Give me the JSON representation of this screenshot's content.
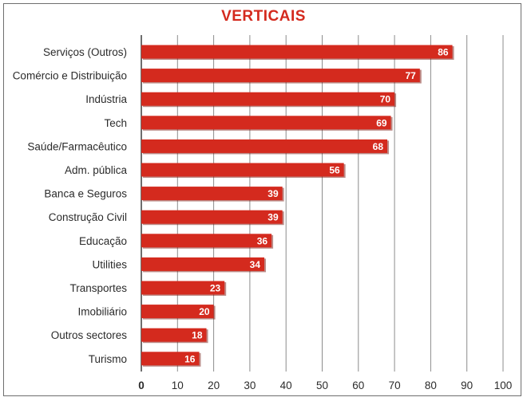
{
  "colors": {
    "bar": "#d42a1e",
    "bar_shadow": "#7a1a12",
    "grid": "#8c8c8c",
    "axis": "#6e6e6e",
    "title": "#d42a1e"
  },
  "chart_data": {
    "type": "bar",
    "orientation": "horizontal",
    "title": "VERTICAIS",
    "xlabel": "",
    "ylabel": "",
    "xlim": [
      0,
      100
    ],
    "grid": true,
    "x_ticks": [
      "0",
      "10",
      "20",
      "30",
      "40",
      "50",
      "60",
      "70",
      "80",
      "90",
      "100"
    ],
    "categories": [
      "Serviços (Outros)",
      "Comércio e Distribuição",
      "Indústria",
      "Tech",
      "Saúde/Farmacêutico",
      "Adm. pública",
      "Banca e Seguros",
      "Construção Civil",
      "Educação",
      "Utilities",
      "Transportes",
      "Imobiliário",
      "Outros sectores",
      "Turismo"
    ],
    "values": [
      86,
      77,
      70,
      69,
      68,
      56,
      39,
      39,
      36,
      34,
      23,
      20,
      18,
      16
    ],
    "value_labels": [
      "86",
      "77",
      "70",
      "69",
      "68",
      "56",
      "39",
      "39",
      "36",
      "34",
      "23",
      "20",
      "18",
      "16"
    ]
  }
}
